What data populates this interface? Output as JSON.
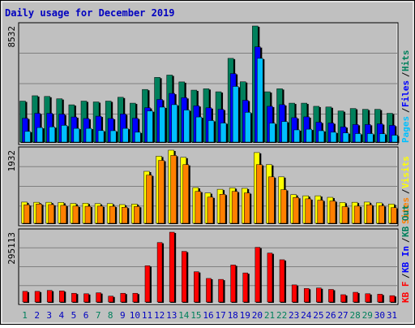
{
  "title": "Daily usage for December 2019",
  "colors": {
    "hits": "#00805C",
    "files": "#0000FF",
    "pages": "#00C0FF",
    "sites": "#FF8000",
    "visits": "#FFFF00",
    "kbytes": "#FF0000",
    "kb_in": "#0000FF",
    "kb_out": "#00805C",
    "title": "#0000C0",
    "weekend_day": "#00805C",
    "weekday": "#0000C0"
  },
  "chart_data": [
    {
      "type": "bar",
      "name": "pages-files-hits",
      "max_label": "8532",
      "ymax": 8532,
      "side_labels": [
        "Pages",
        "Files",
        "Hits"
      ],
      "categories": [
        "1",
        "2",
        "3",
        "4",
        "5",
        "6",
        "7",
        "8",
        "9",
        "10",
        "11",
        "12",
        "13",
        "14",
        "15",
        "16",
        "17",
        "18",
        "19",
        "20",
        "21",
        "22",
        "23",
        "24",
        "25",
        "26",
        "27",
        "28",
        "29",
        "30",
        "31"
      ],
      "series": [
        {
          "name": "Hits",
          "values": [
            3050,
            3440,
            3390,
            3220,
            2780,
            3050,
            2990,
            3050,
            3330,
            2900,
            3900,
            4780,
            4950,
            4450,
            3850,
            3950,
            3730,
            6170,
            4460,
            8532,
            3730,
            3950,
            2900,
            2900,
            2670,
            2620,
            2330,
            2510,
            2450,
            2450,
            2160
          ]
        },
        {
          "name": "Files",
          "values": [
            1800,
            2160,
            2160,
            2100,
            1890,
            1780,
            1950,
            1780,
            2110,
            1800,
            2570,
            3170,
            3610,
            3300,
            2710,
            2560,
            2450,
            5060,
            3110,
            7010,
            2670,
            2790,
            1840,
            1900,
            1510,
            1450,
            1170,
            1340,
            1340,
            1390,
            1280
          ]
        },
        {
          "name": "Pages",
          "values": [
            840,
            1120,
            1170,
            1280,
            1060,
            1060,
            900,
            890,
            1060,
            780,
            2330,
            2610,
            2790,
            2400,
            1890,
            1630,
            1450,
            4120,
            2230,
            6170,
            1440,
            1560,
            950,
            1000,
            890,
            780,
            730,
            680,
            680,
            670,
            560
          ]
        }
      ]
    },
    {
      "type": "bar",
      "name": "sites-visits",
      "max_label": "1932",
      "ymax": 1932,
      "side_labels": [
        "Sites",
        "Visits"
      ],
      "categories": [
        "1",
        "2",
        "3",
        "4",
        "5",
        "6",
        "7",
        "8",
        "9",
        "10",
        "11",
        "12",
        "13",
        "14",
        "15",
        "16",
        "17",
        "18",
        "19",
        "20",
        "21",
        "22",
        "23",
        "24",
        "25",
        "26",
        "27",
        "28",
        "29",
        "30",
        "31"
      ],
      "series": [
        {
          "name": "Visits",
          "values": [
            575,
            570,
            570,
            565,
            540,
            545,
            535,
            535,
            510,
            525,
            1380,
            1775,
            1932,
            1745,
            955,
            815,
            910,
            945,
            935,
            1870,
            1555,
            1235,
            770,
            740,
            740,
            700,
            565,
            570,
            575,
            555,
            525
          ]
        },
        {
          "name": "Sites",
          "values": [
            505,
            525,
            510,
            490,
            470,
            465,
            470,
            465,
            440,
            460,
            1280,
            1665,
            1795,
            1555,
            855,
            705,
            780,
            855,
            815,
            1555,
            1235,
            900,
            695,
            660,
            625,
            605,
            455,
            470,
            505,
            480,
            430
          ]
        }
      ]
    },
    {
      "type": "bar",
      "name": "kbytes",
      "max_label": "295113",
      "ymax": 295113,
      "side_labels": [
        "KB F",
        "KB In",
        "KB Out"
      ],
      "categories": [
        "1",
        "2",
        "3",
        "4",
        "5",
        "6",
        "7",
        "8",
        "9",
        "10",
        "11",
        "12",
        "13",
        "14",
        "15",
        "16",
        "17",
        "18",
        "19",
        "20",
        "21",
        "22",
        "23",
        "24",
        "25",
        "26",
        "27",
        "28",
        "29",
        "30",
        "31"
      ],
      "series": [
        {
          "name": "KB F",
          "values": [
            48000,
            48000,
            52000,
            50000,
            40000,
            38000,
            42000,
            28000,
            40000,
            40000,
            155000,
            252000,
            295113,
            215000,
            130000,
            102000,
            98000,
            158000,
            125000,
            232000,
            208000,
            180000,
            75000,
            60000,
            62000,
            56000,
            34000,
            44000,
            38000,
            36000,
            30000
          ]
        }
      ]
    }
  ]
}
